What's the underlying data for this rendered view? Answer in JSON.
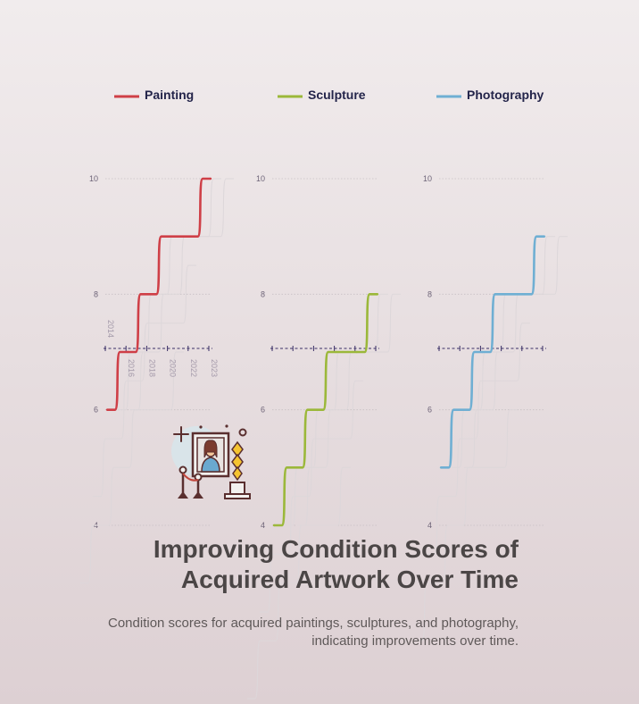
{
  "chart_data": {
    "type": "line",
    "title": "Improving Condition Scores of Acquired Artwork Over Time",
    "subtitle": "Condition scores for acquired paintings, sculptures, and photography, indicating improvements over time.",
    "x": [
      "2014",
      "2016",
      "2018",
      "2020",
      "2022",
      "2023"
    ],
    "ylim": [
      4,
      10
    ],
    "yticks": [
      "4",
      "6",
      "8",
      "10"
    ],
    "series": [
      {
        "name": "Painting",
        "color": "#cf3f47",
        "values": [
          6,
          7,
          8,
          9,
          9,
          10
        ]
      },
      {
        "name": "Sculpture",
        "color": "#9bb83a",
        "values": [
          4,
          5,
          6,
          7,
          7,
          8
        ]
      },
      {
        "name": "Photography",
        "color": "#6fafd3",
        "values": [
          5,
          6,
          7,
          8,
          8,
          9
        ]
      }
    ],
    "grid": true,
    "legend": "top",
    "reference_line": "7 (dashed)"
  }
}
